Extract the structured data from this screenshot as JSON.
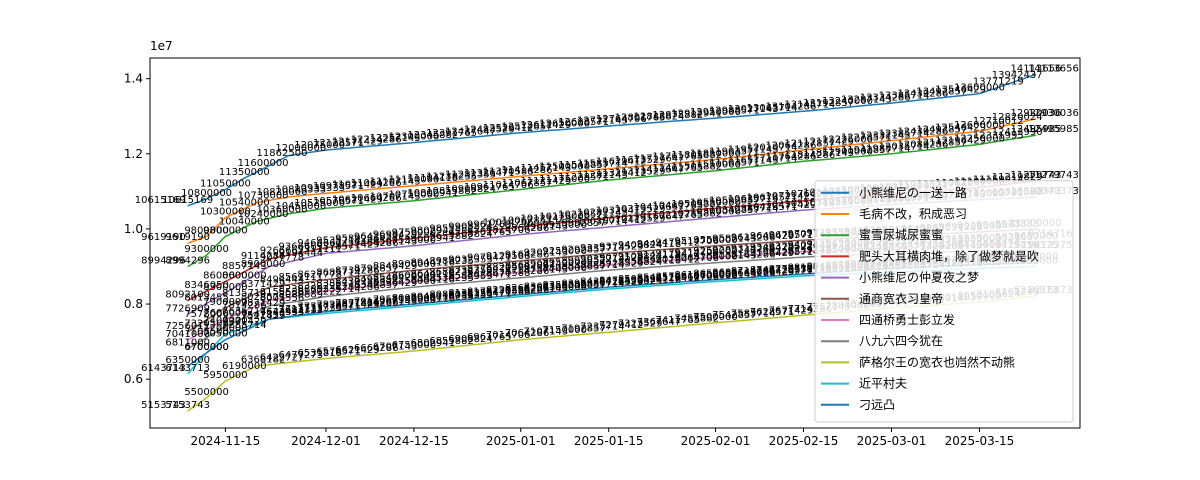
{
  "chart_data": {
    "type": "line",
    "title": "",
    "xlabel": "",
    "ylabel": "",
    "y_offset_label": "1e7",
    "x_axis": {
      "type": "date",
      "range": [
        "2024-11-03",
        "2025-03-31"
      ],
      "ticks": [
        "2024-11-15",
        "2024-12-01",
        "2024-12-15",
        "2025-01-01",
        "2025-01-15",
        "2025-02-01",
        "2025-02-15",
        "2025-03-01",
        "2025-03-15"
      ]
    },
    "y_axis": {
      "range": [
        4700000,
        14550000
      ],
      "ticks": [
        0.6,
        0.8,
        1.0,
        1.2,
        1.4
      ]
    },
    "grid": false,
    "legend": {
      "placement": "lower-right"
    },
    "series": [
      {
        "name": "小熊维尼の一送一路",
        "color": "#1f77b4",
        "points": [
          [
            "2024-11-09",
            10615169
          ],
          [
            "2024-11-12",
            10800000
          ],
          [
            "2024-11-15",
            11050000
          ],
          [
            "2024-11-18",
            11350000
          ],
          [
            "2024-11-21",
            11600000
          ],
          [
            "2024-11-25",
            11950000
          ],
          [
            "2024-12-01",
            12100000
          ],
          [
            "2024-12-15",
            12300000
          ],
          [
            "2025-01-01",
            12560000
          ],
          [
            "2025-01-15",
            12740000
          ],
          [
            "2025-02-01",
            12950000
          ],
          [
            "2025-02-15",
            13130000
          ],
          [
            "2025-03-01",
            13350000
          ],
          [
            "2025-03-15",
            13600000
          ],
          [
            "2025-03-24",
            14113656
          ]
        ]
      },
      {
        "name": "毛病不改，积成恶习",
        "color": "#ff7f0e",
        "points": [
          [
            "2024-11-09",
            9619190
          ],
          [
            "2024-11-12",
            9800000
          ],
          [
            "2024-11-15",
            10300000
          ],
          [
            "2024-11-20",
            10700000
          ],
          [
            "2024-11-25",
            10850000
          ],
          [
            "2024-12-01",
            10950000
          ],
          [
            "2024-12-15",
            11150000
          ],
          [
            "2025-01-01",
            11400000
          ],
          [
            "2025-01-15",
            11600000
          ],
          [
            "2025-02-01",
            11850000
          ],
          [
            "2025-02-15",
            12100000
          ],
          [
            "2025-03-01",
            12350000
          ],
          [
            "2025-03-15",
            12600000
          ],
          [
            "2025-03-24",
            12930036
          ]
        ]
      },
      {
        "name": "蜜雪尿城尿蜜蜜",
        "color": "#2ca02c",
        "points": [
          [
            "2024-11-09",
            8994296
          ],
          [
            "2024-11-12",
            9300000
          ],
          [
            "2024-11-15",
            9800000
          ],
          [
            "2024-11-20",
            10200000
          ],
          [
            "2024-11-25",
            10400000
          ],
          [
            "2024-12-01",
            10550000
          ],
          [
            "2024-12-15",
            10750000
          ],
          [
            "2025-01-01",
            11050000
          ],
          [
            "2025-01-15",
            11300000
          ],
          [
            "2025-02-01",
            11550000
          ],
          [
            "2025-02-15",
            11800000
          ],
          [
            "2025-03-01",
            12000000
          ],
          [
            "2025-03-15",
            12250000
          ],
          [
            "2025-03-24",
            12495985
          ]
        ]
      },
      {
        "name": "肥头大耳横肉堆，除了做梦就是吹",
        "color": "#d62728",
        "points": [
          [
            "2024-11-09",
            8092100
          ],
          [
            "2024-11-15",
            8600000
          ],
          [
            "2024-11-22",
            9200000
          ],
          [
            "2024-12-01",
            9500000
          ],
          [
            "2024-12-15",
            9750000
          ],
          [
            "2025-01-01",
            10050000
          ],
          [
            "2025-01-15",
            10300000
          ],
          [
            "2025-02-01",
            10550000
          ],
          [
            "2025-02-15",
            10750000
          ],
          [
            "2025-03-01",
            10950000
          ],
          [
            "2025-03-15",
            11100000
          ],
          [
            "2025-03-24",
            11279743
          ]
        ]
      },
      {
        "name": "小熊维尼の仲夏夜之梦",
        "color": "#9467bd",
        "points": [
          [
            "2024-11-09",
            7726909
          ],
          [
            "2024-11-15",
            8300000
          ],
          [
            "2024-11-22",
            9000000
          ],
          [
            "2024-12-01",
            9350000
          ],
          [
            "2024-12-15",
            9550000
          ],
          [
            "2025-01-01",
            9850000
          ],
          [
            "2025-01-15",
            10050000
          ],
          [
            "2025-02-01",
            10300000
          ],
          [
            "2025-02-15",
            10500000
          ],
          [
            "2025-03-01",
            10650000
          ],
          [
            "2025-03-15",
            10780000
          ],
          [
            "2025-03-24",
            10848373
          ]
        ]
      },
      {
        "name": "通商宽衣习皇帝",
        "color": "#8c564b",
        "points": [
          [
            "2024-11-09",
            7256011
          ],
          [
            "2024-11-15",
            7900000
          ],
          [
            "2024-11-22",
            8450000
          ],
          [
            "2024-12-01",
            8650000
          ],
          [
            "2024-12-15",
            8900000
          ],
          [
            "2025-01-01",
            9150000
          ],
          [
            "2025-01-15",
            9350000
          ],
          [
            "2025-02-01",
            9550000
          ],
          [
            "2025-02-15",
            9700000
          ],
          [
            "2025-03-01",
            9800000
          ],
          [
            "2025-03-15",
            9920000
          ],
          [
            "2025-03-24",
            10000000
          ]
        ]
      },
      {
        "name": "四通桥勇士彭立发",
        "color": "#e377c2",
        "points": [
          [
            "2024-11-09",
            7041000
          ],
          [
            "2024-11-15",
            7600000
          ],
          [
            "2024-11-22",
            8100000
          ],
          [
            "2024-12-01",
            8350000
          ],
          [
            "2024-12-15",
            8600000
          ],
          [
            "2025-01-01",
            8850000
          ],
          [
            "2025-01-15",
            9050000
          ],
          [
            "2025-02-01",
            9250000
          ],
          [
            "2025-02-15",
            9400000
          ],
          [
            "2025-03-01",
            9500000
          ],
          [
            "2025-03-15",
            9580000
          ],
          [
            "2025-03-24",
            9650000
          ]
        ]
      },
      {
        "name": "八九六四今犹在",
        "color": "#7f7f7f",
        "points": [
          [
            "2024-11-09",
            6811000
          ],
          [
            "2024-11-15",
            7400000
          ],
          [
            "2024-11-22",
            7950000
          ],
          [
            "2024-12-01",
            8200000
          ],
          [
            "2024-12-15",
            8450000
          ],
          [
            "2025-01-01",
            8700000
          ],
          [
            "2025-01-15",
            8900000
          ],
          [
            "2025-02-01",
            9100000
          ],
          [
            "2025-02-15",
            9250000
          ],
          [
            "2025-03-01",
            9350000
          ],
          [
            "2025-03-15",
            9410000
          ],
          [
            "2025-03-24",
            9413375
          ]
        ]
      },
      {
        "name": "萨格尔王の宽衣也岿然不动熊",
        "color": "#bcbd22",
        "points": [
          [
            "2024-11-09",
            5153743
          ],
          [
            "2024-11-12",
            5500000
          ],
          [
            "2024-11-15",
            5950000
          ],
          [
            "2024-11-20",
            6350000
          ],
          [
            "2024-12-01",
            6550000
          ],
          [
            "2024-12-15",
            6750000
          ],
          [
            "2025-01-01",
            7050000
          ],
          [
            "2025-01-15",
            7250000
          ],
          [
            "2025-02-01",
            7500000
          ],
          [
            "2025-02-15",
            7700000
          ],
          [
            "2025-03-01",
            7900000
          ],
          [
            "2025-03-15",
            8050000
          ],
          [
            "2025-03-24",
            8216873
          ]
        ]
      },
      {
        "name": "近平村夫",
        "color": "#17becf",
        "points": [
          [
            "2024-11-09",
            6143713
          ],
          [
            "2024-11-12",
            6700000
          ],
          [
            "2024-11-15",
            7200000
          ],
          [
            "2024-11-22",
            7600000
          ],
          [
            "2024-12-01",
            7750000
          ],
          [
            "2024-12-15",
            7950000
          ],
          [
            "2025-01-01",
            8200000
          ],
          [
            "2025-01-15",
            8400000
          ],
          [
            "2025-02-01",
            8600000
          ],
          [
            "2025-02-15",
            8750000
          ],
          [
            "2025-03-01",
            8850000
          ],
          [
            "2025-03-15",
            8950000
          ],
          [
            "2025-03-24",
            9000000
          ]
        ]
      },
      {
        "name": "刁远凸",
        "color": "#1f77b4",
        "points": [
          [
            "2024-11-09",
            6350000
          ],
          [
            "2024-11-15",
            7050000
          ],
          [
            "2024-11-22",
            7600000
          ],
          [
            "2024-12-01",
            7800000
          ],
          [
            "2024-12-15",
            8000000
          ],
          [
            "2025-01-01",
            8250000
          ],
          [
            "2025-01-15",
            8450000
          ],
          [
            "2025-02-01",
            8650000
          ],
          [
            "2025-02-15",
            8800000
          ],
          [
            "2025-03-01",
            8950000
          ],
          [
            "2025-03-15",
            9050000
          ],
          [
            "2025-03-24",
            9100000
          ]
        ]
      }
    ],
    "annotations": [
      {
        "date": "2024-11-09",
        "value": 10615169,
        "text": "10615169",
        "anchor": "end"
      },
      {
        "date": "2024-11-09",
        "value": 9619190,
        "text": "9619190",
        "anchor": "end"
      },
      {
        "date": "2024-11-09",
        "value": 8994296,
        "text": "8994296",
        "anchor": "end"
      },
      {
        "date": "2024-11-09",
        "value": 6143713,
        "text": "6143713",
        "anchor": "end"
      },
      {
        "date": "2024-11-09",
        "value": 5153743,
        "text": "5153743",
        "anchor": "end"
      },
      {
        "date": "2025-03-24",
        "value": 14113656,
        "text": "14113656",
        "anchor": "start"
      },
      {
        "date": "2025-03-24",
        "value": 12930036,
        "text": "12930036",
        "anchor": "start"
      },
      {
        "date": "2025-03-24",
        "value": 12495985,
        "text": "12495985",
        "anchor": "start"
      },
      {
        "date": "2025-03-24",
        "value": 11279743,
        "text": "11279743",
        "anchor": "start"
      },
      {
        "date": "2025-03-24",
        "value": 10848373,
        "text": "10848373",
        "anchor": "start"
      },
      {
        "date": "2025-03-24",
        "value": 9714716,
        "text": "9714716",
        "anchor": "start"
      },
      {
        "date": "2025-03-24",
        "value": 9413375,
        "text": "9413375",
        "anchor": "start"
      },
      {
        "date": "2025-03-24",
        "value": 8216873,
        "text": "8216873",
        "anchor": "start"
      }
    ]
  }
}
